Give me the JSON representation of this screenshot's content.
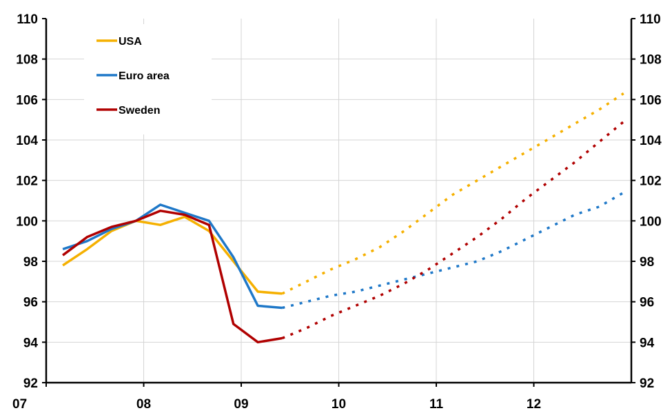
{
  "chart_data": {
    "type": "line",
    "title": "",
    "xlabel": "",
    "ylabel": "",
    "ylim": [
      92,
      110
    ],
    "xlim": [
      2007.0,
      2013.0
    ],
    "y_ticks": [
      "92",
      "94",
      "96",
      "98",
      "100",
      "102",
      "104",
      "106",
      "108",
      "110"
    ],
    "x_ticks": [
      {
        "x": 2007.0,
        "label": "07"
      },
      {
        "x": 2008.0,
        "label": "08"
      },
      {
        "x": 2009.0,
        "label": "09"
      },
      {
        "x": 2010.0,
        "label": "10"
      },
      {
        "x": 2011.0,
        "label": "11"
      },
      {
        "x": 2012.0,
        "label": "12"
      }
    ],
    "grid": true,
    "right_axis_mirror": true,
    "legend_placement": "top-left",
    "series": [
      {
        "name": "USA",
        "color": "#F5B000",
        "actual": {
          "x": [
            2007.17,
            2007.42,
            2007.67,
            2007.92,
            2008.17,
            2008.42,
            2008.67,
            2008.92,
            2009.17,
            2009.42
          ],
          "y": [
            97.8,
            98.6,
            99.5,
            100.0,
            99.8,
            100.2,
            99.5,
            98.0,
            96.5,
            96.4
          ]
        },
        "forecast": {
          "x": [
            2009.42,
            2009.67,
            2009.92,
            2010.17,
            2010.42,
            2010.67,
            2010.92,
            2011.17,
            2011.42,
            2011.67,
            2011.92,
            2012.17,
            2012.42,
            2012.67,
            2012.92
          ],
          "y": [
            96.4,
            97.0,
            97.6,
            98.1,
            98.7,
            99.5,
            100.4,
            101.3,
            102.0,
            102.7,
            103.4,
            104.1,
            104.8,
            105.5,
            106.3
          ]
        }
      },
      {
        "name": "Euro area",
        "color": "#1F78C8",
        "actual": {
          "x": [
            2007.17,
            2007.42,
            2007.67,
            2007.92,
            2008.17,
            2008.42,
            2008.67,
            2008.92,
            2009.17,
            2009.42
          ],
          "y": [
            98.6,
            99.0,
            99.6,
            100.0,
            100.8,
            100.4,
            100.0,
            98.2,
            95.8,
            95.7
          ]
        },
        "forecast": {
          "x": [
            2009.42,
            2009.67,
            2009.92,
            2010.17,
            2010.42,
            2010.67,
            2010.92,
            2011.17,
            2011.42,
            2011.67,
            2011.92,
            2012.17,
            2012.42,
            2012.67,
            2012.92
          ],
          "y": [
            95.7,
            96.0,
            96.3,
            96.5,
            96.8,
            97.1,
            97.4,
            97.7,
            98.0,
            98.5,
            99.1,
            99.7,
            100.3,
            100.7,
            101.4
          ]
        }
      },
      {
        "name": "Sweden",
        "color": "#B00000",
        "actual": {
          "x": [
            2007.17,
            2007.42,
            2007.67,
            2007.92,
            2008.17,
            2008.42,
            2008.67,
            2008.92,
            2009.17,
            2009.42
          ],
          "y": [
            98.3,
            99.2,
            99.7,
            100.0,
            100.5,
            100.3,
            99.8,
            94.9,
            94.0,
            94.2
          ]
        },
        "forecast": {
          "x": [
            2009.42,
            2009.67,
            2009.92,
            2010.17,
            2010.42,
            2010.67,
            2010.92,
            2011.17,
            2011.42,
            2011.67,
            2011.92,
            2012.17,
            2012.42,
            2012.67,
            2012.92
          ],
          "y": [
            94.2,
            94.7,
            95.3,
            95.8,
            96.3,
            96.9,
            97.6,
            98.4,
            99.2,
            100.1,
            101.1,
            102.0,
            102.9,
            103.9,
            104.9
          ]
        }
      }
    ]
  }
}
